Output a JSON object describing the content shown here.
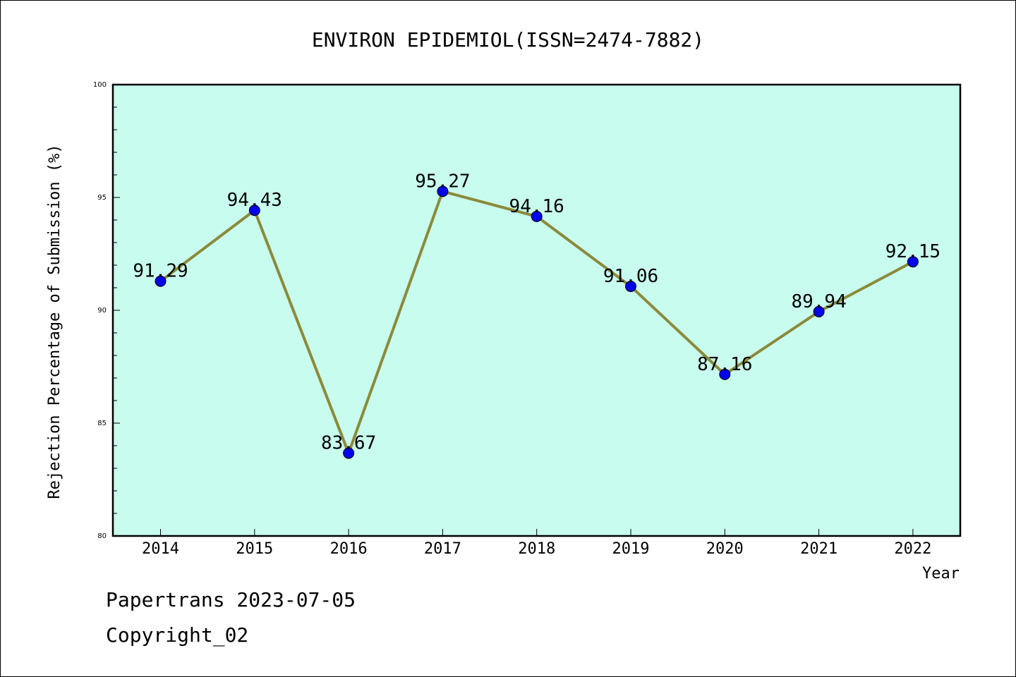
{
  "chart_data": {
    "type": "line",
    "title": "ENVIRON EPIDEMIOL(ISSN=2474-7882)",
    "xlabel": "Year",
    "ylabel": "Rejection Percentage of Submission (%)",
    "categories": [
      "2014",
      "2015",
      "2016",
      "2017",
      "2018",
      "2019",
      "2020",
      "2021",
      "2022"
    ],
    "series": [
      {
        "values": [
          91.29,
          94.43,
          83.67,
          95.27,
          94.16,
          91.06,
          87.16,
          89.94,
          92.15
        ],
        "labels": [
          "91.29",
          "94.43",
          "83.67",
          "95.27",
          "94.16",
          "91.06",
          "87.16",
          "89.94",
          "92.15"
        ]
      }
    ],
    "ylim": [
      80,
      100
    ],
    "yticks": [
      "80",
      "85",
      "90",
      "95",
      "100"
    ],
    "grid": false,
    "colors": {
      "plot_background": "#c8fcee",
      "line": "#8b8a3a",
      "marker": "#0000ee"
    }
  },
  "footer": {
    "line1": "Papertrans 2023-07-05",
    "line2": "Copyright_02"
  }
}
